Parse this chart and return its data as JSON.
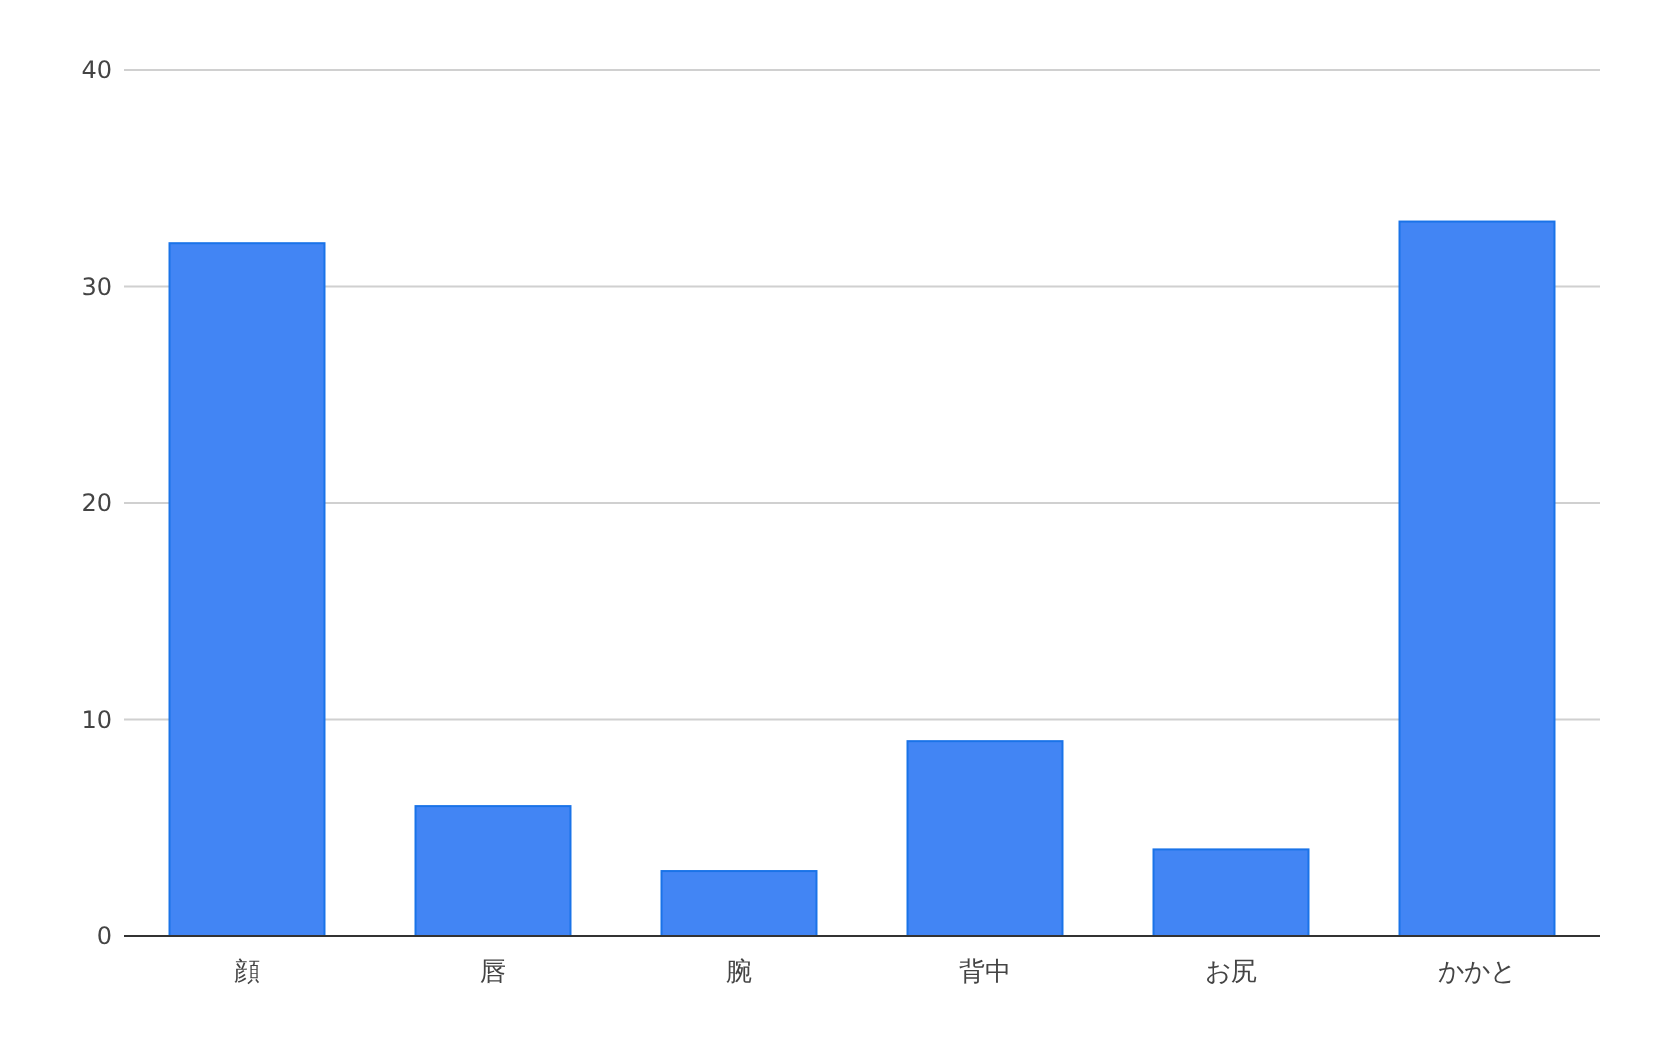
{
  "chart_data": {
    "type": "bar",
    "categories": [
      "顔",
      "唇",
      "腕",
      "背中",
      "お尻",
      "かかと"
    ],
    "values": [
      32,
      6,
      3,
      9,
      4,
      33
    ],
    "color": "#4285f4",
    "ylim": [
      0,
      40
    ],
    "yticks": [
      0,
      10,
      20,
      30,
      40
    ],
    "grid": "y"
  }
}
